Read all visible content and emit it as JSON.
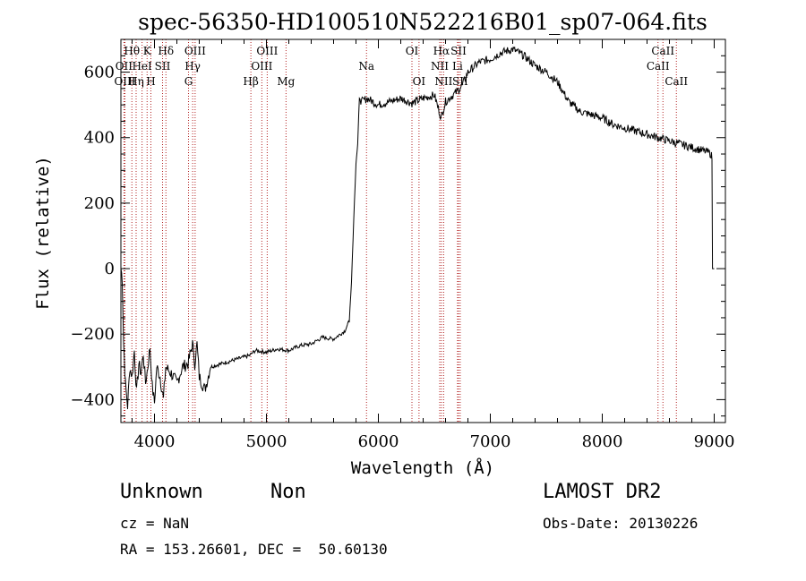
{
  "chart_data": {
    "type": "line",
    "title": "spec-56350-HD100510N522216B01_sp07-064.fits",
    "xlabel": "Wavelength (Å)",
    "ylabel": "Flux (relative)",
    "xlim": [
      3700,
      9100
    ],
    "ylim": [
      -470,
      700
    ],
    "xticks": [
      4000,
      5000,
      6000,
      7000,
      8000,
      9000
    ],
    "yticks": [
      -400,
      -200,
      0,
      200,
      400,
      600
    ],
    "grid": false,
    "series": [
      {
        "name": "flux",
        "points": [
          [
            3700,
            0
          ],
          [
            3712,
            -30
          ],
          [
            3725,
            -230
          ],
          [
            3740,
            -350
          ],
          [
            3760,
            -420
          ],
          [
            3780,
            -300
          ],
          [
            3800,
            -330
          ],
          [
            3820,
            -250
          ],
          [
            3840,
            -380
          ],
          [
            3860,
            -290
          ],
          [
            3880,
            -320
          ],
          [
            3900,
            -260
          ],
          [
            3920,
            -350
          ],
          [
            3940,
            -300
          ],
          [
            3960,
            -240
          ],
          [
            3980,
            -360
          ],
          [
            4000,
            -410
          ],
          [
            4020,
            -300
          ],
          [
            4050,
            -330
          ],
          [
            4080,
            -400
          ],
          [
            4100,
            -300
          ],
          [
            4150,
            -320
          ],
          [
            4200,
            -350
          ],
          [
            4250,
            -300
          ],
          [
            4300,
            -290
          ],
          [
            4340,
            -230
          ],
          [
            4360,
            -290
          ],
          [
            4380,
            -230
          ],
          [
            4400,
            -330
          ],
          [
            4450,
            -370
          ],
          [
            4500,
            -300
          ],
          [
            4600,
            -290
          ],
          [
            4700,
            -280
          ],
          [
            4800,
            -270
          ],
          [
            4850,
            -265
          ],
          [
            4900,
            -250
          ],
          [
            5000,
            -255
          ],
          [
            5100,
            -245
          ],
          [
            5200,
            -250
          ],
          [
            5300,
            -235
          ],
          [
            5400,
            -230
          ],
          [
            5500,
            -210
          ],
          [
            5600,
            -215
          ],
          [
            5700,
            -190
          ],
          [
            5740,
            -160
          ],
          [
            5760,
            -40
          ],
          [
            5780,
            150
          ],
          [
            5800,
            320
          ],
          [
            5815,
            380
          ],
          [
            5830,
            520
          ],
          [
            5850,
            510
          ],
          [
            5900,
            520
          ],
          [
            6000,
            500
          ],
          [
            6100,
            510
          ],
          [
            6200,
            520
          ],
          [
            6300,
            505
          ],
          [
            6400,
            520
          ],
          [
            6500,
            530
          ],
          [
            6560,
            460
          ],
          [
            6600,
            510
          ],
          [
            6700,
            540
          ],
          [
            6750,
            560
          ],
          [
            6800,
            600
          ],
          [
            6900,
            630
          ],
          [
            7000,
            640
          ],
          [
            7100,
            660
          ],
          [
            7200,
            670
          ],
          [
            7300,
            650
          ],
          [
            7400,
            620
          ],
          [
            7500,
            600
          ],
          [
            7600,
            570
          ],
          [
            7700,
            510
          ],
          [
            7800,
            480
          ],
          [
            7900,
            470
          ],
          [
            8000,
            460
          ],
          [
            8100,
            440
          ],
          [
            8200,
            430
          ],
          [
            8300,
            420
          ],
          [
            8400,
            410
          ],
          [
            8500,
            400
          ],
          [
            8600,
            390
          ],
          [
            8700,
            380
          ],
          [
            8800,
            370
          ],
          [
            8900,
            360
          ],
          [
            8950,
            355
          ],
          [
            8970,
            350
          ],
          [
            8980,
            340
          ],
          [
            8985,
            0
          ],
          [
            9000,
            0
          ]
        ]
      }
    ],
    "lines": [
      {
        "name": "Hθ",
        "x": 3798,
        "row": 1
      },
      {
        "name": "OII",
        "x": 3727,
        "row": 2
      },
      {
        "name": "OIII",
        "x": 3736,
        "row": 3
      },
      {
        "name": "Hη",
        "x": 3836,
        "row": 3
      },
      {
        "name": "HeI",
        "x": 3889,
        "row": 2
      },
      {
        "name": "K",
        "x": 3934,
        "row": 1
      },
      {
        "name": "H",
        "x": 3968,
        "row": 3
      },
      {
        "name": "SII",
        "x": 4072,
        "row": 2
      },
      {
        "name": "Hδ",
        "x": 4102,
        "row": 1
      },
      {
        "name": "G",
        "x": 4304,
        "row": 3
      },
      {
        "name": "Hγ",
        "x": 4341,
        "row": 2
      },
      {
        "name": "OIII",
        "x": 4363,
        "row": 1
      },
      {
        "name": "Hβ",
        "x": 4861,
        "row": 3
      },
      {
        "name": "OIII",
        "x": 4959,
        "row": 2
      },
      {
        "name": "OIII",
        "x": 5007,
        "row": 1
      },
      {
        "name": "Mg",
        "x": 5175,
        "row": 3
      },
      {
        "name": "Na",
        "x": 5894,
        "row": 2
      },
      {
        "name": "OI",
        "x": 6300,
        "row": 1
      },
      {
        "name": "OI",
        "x": 6363,
        "row": 3
      },
      {
        "name": "NII",
        "x": 6548,
        "row": 2
      },
      {
        "name": "Hα",
        "x": 6563,
        "row": 1
      },
      {
        "name": "NII",
        "x": 6583,
        "row": 3
      },
      {
        "name": "Li",
        "x": 6707,
        "row": 2
      },
      {
        "name": "SII",
        "x": 6716,
        "row": 1
      },
      {
        "name": "SII",
        "x": 6731,
        "row": 3
      },
      {
        "name": "CaII",
        "x": 8498,
        "row": 2
      },
      {
        "name": "CaII",
        "x": 8542,
        "row": 1
      },
      {
        "name": "CaII",
        "x": 8662,
        "row": 3
      }
    ]
  },
  "info": {
    "object_class": "Unknown",
    "object_subclass": "Non",
    "survey": "LAMOST DR2",
    "redshift": "cz = NaN",
    "obs_date": "Obs-Date: 20130226",
    "coords": "RA = 153.26601, DEC =  50.60130"
  },
  "colors": {
    "spectrum": "#000000",
    "line_marker": "#b22222",
    "axis": "#000000"
  }
}
